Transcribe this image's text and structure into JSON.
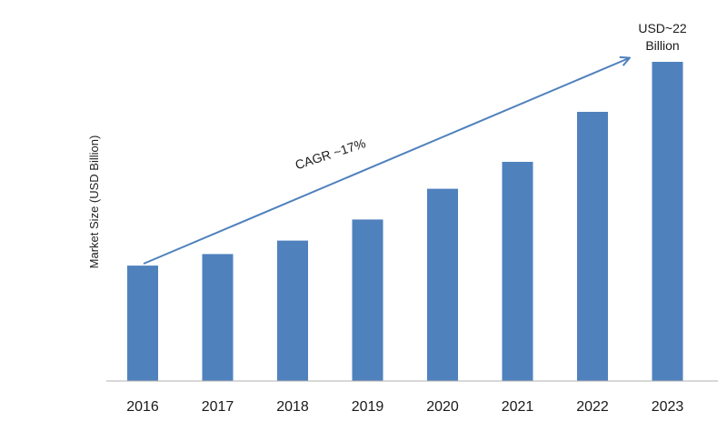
{
  "chart_data": {
    "type": "bar",
    "categories": [
      "2016",
      "2017",
      "2018",
      "2019",
      "2020",
      "2021",
      "2022",
      "2023"
    ],
    "values": [
      6.0,
      6.6,
      7.3,
      8.4,
      10.0,
      11.4,
      14.0,
      16.6
    ],
    "ylabel": "Market Size (USD Billion)",
    "xlabel": "",
    "ylim": [
      0,
      16.6
    ],
    "grid": false,
    "bar_color": "#4f81bd",
    "annotations": {
      "cagr": "CAGR ~17%",
      "final_value_line1": "USD~22",
      "final_value_line2": "Billion"
    }
  }
}
